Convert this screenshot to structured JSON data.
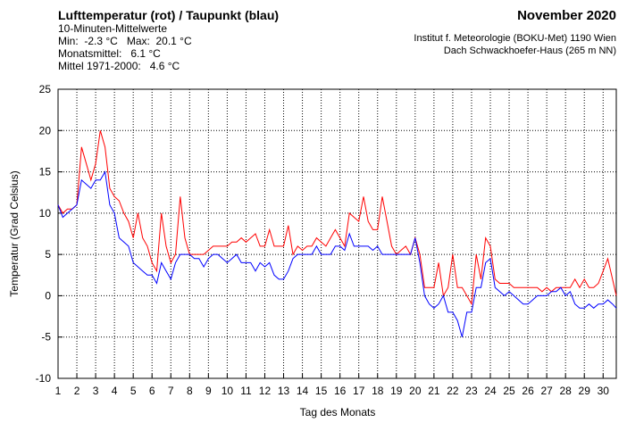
{
  "chart_data": {
    "type": "line",
    "title": "Lufttemperatur (rot) / Taupunkt (blau)",
    "subtitle_lines": [
      "10-Minuten-Mittelwerte",
      "Min:  -2.3 °C   Max:  20.1 °C",
      "Monatsmittel:   6.1 °C",
      "Mittel 1971-2000:   4.6 °C"
    ],
    "period": "November 2020",
    "source_lines": [
      "Institut f. Meteorologie (BOKU-Met) 1190 Wien",
      "Dach Schwackhoefer-Haus (265 m NN)"
    ],
    "xlabel": "Tag des Monats",
    "ylabel": "Temperatur (Grad Celsius)",
    "xlim": [
      1,
      30.7
    ],
    "ylim": [
      -10,
      25
    ],
    "xticks": [
      1,
      2,
      3,
      4,
      5,
      6,
      7,
      8,
      9,
      10,
      11,
      12,
      13,
      14,
      15,
      16,
      17,
      18,
      19,
      20,
      21,
      22,
      23,
      24,
      25,
      26,
      27,
      28,
      29,
      30
    ],
    "yticks": [
      -10,
      -5,
      0,
      5,
      10,
      15,
      20,
      25
    ],
    "grid": true,
    "x": [
      1,
      1.25,
      1.5,
      1.75,
      2,
      2.25,
      2.5,
      2.75,
      3,
      3.25,
      3.5,
      3.75,
      4,
      4.25,
      4.5,
      4.75,
      5,
      5.25,
      5.5,
      5.75,
      6,
      6.25,
      6.5,
      6.75,
      7,
      7.25,
      7.5,
      7.75,
      8,
      8.25,
      8.5,
      8.75,
      9,
      9.25,
      9.5,
      9.75,
      10,
      10.25,
      10.5,
      10.75,
      11,
      11.25,
      11.5,
      11.75,
      12,
      12.25,
      12.5,
      12.75,
      13,
      13.25,
      13.5,
      13.75,
      14,
      14.25,
      14.5,
      14.75,
      15,
      15.25,
      15.5,
      15.75,
      16,
      16.25,
      16.5,
      16.75,
      17,
      17.25,
      17.5,
      17.75,
      18,
      18.25,
      18.5,
      18.75,
      19,
      19.25,
      19.5,
      19.75,
      20,
      20.25,
      20.5,
      20.75,
      21,
      21.25,
      21.5,
      21.75,
      22,
      22.25,
      22.5,
      22.75,
      23,
      23.25,
      23.5,
      23.75,
      24,
      24.25,
      24.5,
      24.75,
      25,
      25.25,
      25.5,
      25.75,
      26,
      26.25,
      26.5,
      26.75,
      27,
      27.25,
      27.5,
      27.75,
      28,
      28.25,
      28.5,
      28.75,
      29,
      29.25,
      29.5,
      29.75,
      30,
      30.25,
      30.5,
      30.7
    ],
    "series": [
      {
        "color": "#ff0000",
        "values": [
          11,
          10,
          10.5,
          10.5,
          11,
          18,
          16,
          14,
          16,
          20,
          18,
          13,
          12,
          11.5,
          10,
          9,
          7,
          10,
          7,
          6,
          4,
          3,
          10,
          6,
          4,
          5,
          12,
          7,
          5,
          5,
          5,
          5,
          5.5,
          6,
          6,
          6,
          6,
          6.5,
          6.5,
          7,
          6.5,
          7,
          7.5,
          6,
          6,
          8,
          6,
          6,
          6,
          8.5,
          5,
          6,
          5.5,
          6,
          6,
          7,
          6.5,
          6,
          7,
          8,
          7,
          6,
          10,
          9.5,
          9,
          12,
          9,
          8,
          8,
          12,
          9,
          6,
          5,
          5.5,
          6,
          5,
          7,
          5,
          1,
          1,
          1,
          4,
          0,
          1,
          5,
          1,
          1,
          0,
          -1,
          5,
          2,
          7,
          6,
          2,
          1.5,
          1.5,
          1.5,
          1,
          1,
          1,
          1,
          1,
          1,
          0.5,
          1,
          0.5,
          1,
          1,
          1,
          1,
          2,
          1,
          2,
          1,
          1,
          1.5,
          3,
          4.5,
          2,
          0
        ]
      },
      {
        "color": "#0000ff",
        "values": [
          11,
          9.5,
          10,
          10.5,
          11,
          14,
          13.5,
          13,
          14,
          14,
          15,
          11,
          10,
          7,
          6.5,
          6,
          4,
          3.5,
          3,
          2.5,
          2.5,
          1.5,
          4,
          3,
          2,
          4,
          5,
          5,
          5,
          4.5,
          4.5,
          3.5,
          4.5,
          5,
          5,
          4.5,
          4,
          4.5,
          5,
          4,
          4,
          4,
          3,
          4,
          3.5,
          4,
          2.5,
          2,
          2,
          3,
          4.5,
          5,
          5,
          5,
          5,
          6,
          5,
          5,
          5,
          6,
          6,
          5.5,
          7.5,
          6,
          6,
          6,
          6,
          5.5,
          6,
          5,
          5,
          5,
          5,
          5,
          5,
          5,
          7,
          4,
          0,
          -1,
          -1.5,
          -1,
          0,
          -2,
          -2,
          -3,
          -5,
          -2,
          -2,
          1,
          1,
          4,
          4.5,
          1,
          0.5,
          0,
          0.5,
          0,
          -0.5,
          -1,
          -1,
          -0.5,
          0,
          0,
          0,
          0.5,
          0.5,
          1,
          0,
          0.5,
          -1,
          -1.5,
          -1.5,
          -1,
          -1.5,
          -1,
          -1,
          -0.5,
          -1,
          -1.5
        ]
      }
    ]
  }
}
